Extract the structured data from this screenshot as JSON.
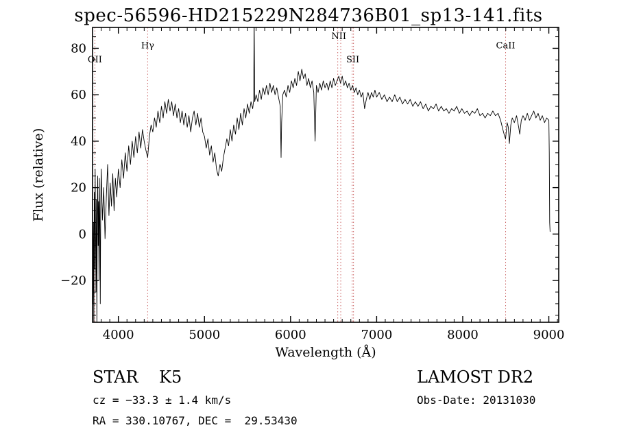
{
  "title": "spec-56596-HD215229N284736B01_sp13-141.fits",
  "annotations": {
    "class_label": "STAR    K5",
    "survey": "LAMOST DR2",
    "cz": "cz = −33.3 ± 1.4 km/s",
    "obs_date": "Obs-Date: 20131030",
    "radec": "RA = 330.10767, DEC =  29.53430"
  },
  "colors": {
    "trace": "#000000",
    "axis": "#000000",
    "spectral_line": "#cc6666",
    "spectral_label": "#883333"
  },
  "chart_data": {
    "type": "line",
    "title": "spec-56596-HD215229N284736B01_sp13-141.fits",
    "xlabel": "Wavelength (Å)",
    "ylabel": "Flux (relative)",
    "xlim": [
      3700,
      9115
    ],
    "ylim": [
      -38,
      89
    ],
    "grid": false,
    "legend": "none",
    "xticks": [
      4000,
      5000,
      6000,
      7000,
      8000,
      9000
    ],
    "xtick_labels": [
      "4000",
      "5000",
      "6000",
      "7000",
      "8000",
      "9000"
    ],
    "yticks": [
      -20,
      0,
      20,
      40,
      60,
      80
    ],
    "ytick_labels": [
      "−20",
      "0",
      "20",
      "40",
      "60",
      "80"
    ],
    "x_minor_step": 100,
    "y_minor_step": 5,
    "spectral_lines": [
      {
        "label": "OII",
        "waves": [
          3727
        ],
        "label_wave": 3727,
        "label_flux": 74
      },
      {
        "label": "Hγ",
        "waves": [
          4340
        ],
        "label_wave": 4340,
        "label_flux": 80
      },
      {
        "label": "NII",
        "waves": [
          6548,
          6583
        ],
        "label_wave": 6560,
        "label_flux": 84
      },
      {
        "label": "SII",
        "waves": [
          6716,
          6731
        ],
        "label_wave": 6723,
        "label_flux": 74
      },
      {
        "label": "CaII",
        "waves": [
          8498
        ],
        "label_wave": 8498,
        "label_flux": 80
      }
    ],
    "series": [
      {
        "name": "spectrum",
        "points": [
          [
            3695,
            -8
          ],
          [
            3700,
            12
          ],
          [
            3705,
            -30
          ],
          [
            3710,
            5
          ],
          [
            3715,
            -45
          ],
          [
            3720,
            18
          ],
          [
            3725,
            -15
          ],
          [
            3730,
            28
          ],
          [
            3735,
            0
          ],
          [
            3740,
            -25
          ],
          [
            3745,
            15
          ],
          [
            3750,
            -38
          ],
          [
            3755,
            8
          ],
          [
            3760,
            25
          ],
          [
            3765,
            -5
          ],
          [
            3770,
            14
          ],
          [
            3775,
            -20
          ],
          [
            3780,
            24
          ],
          [
            3785,
            2
          ],
          [
            3790,
            -30
          ],
          [
            3795,
            10
          ],
          [
            3800,
            28
          ],
          [
            3815,
            6
          ],
          [
            3830,
            20
          ],
          [
            3845,
            -2
          ],
          [
            3860,
            16
          ],
          [
            3875,
            30
          ],
          [
            3890,
            8
          ],
          [
            3905,
            22
          ],
          [
            3920,
            12
          ],
          [
            3935,
            26
          ],
          [
            3950,
            10
          ],
          [
            3965,
            24
          ],
          [
            3980,
            16
          ],
          [
            4000,
            28
          ],
          [
            4020,
            20
          ],
          [
            4040,
            32
          ],
          [
            4060,
            24
          ],
          [
            4080,
            35
          ],
          [
            4100,
            27
          ],
          [
            4120,
            38
          ],
          [
            4140,
            30
          ],
          [
            4160,
            40
          ],
          [
            4180,
            33
          ],
          [
            4200,
            42
          ],
          [
            4220,
            35
          ],
          [
            4240,
            44
          ],
          [
            4260,
            37
          ],
          [
            4280,
            45
          ],
          [
            4300,
            40
          ],
          [
            4320,
            36
          ],
          [
            4340,
            33
          ],
          [
            4360,
            42
          ],
          [
            4380,
            47
          ],
          [
            4400,
            44
          ],
          [
            4420,
            50
          ],
          [
            4440,
            46
          ],
          [
            4460,
            53
          ],
          [
            4480,
            48
          ],
          [
            4500,
            55
          ],
          [
            4520,
            50
          ],
          [
            4540,
            57
          ],
          [
            4560,
            52
          ],
          [
            4580,
            58
          ],
          [
            4600,
            53
          ],
          [
            4620,
            57
          ],
          [
            4640,
            51
          ],
          [
            4660,
            56
          ],
          [
            4680,
            50
          ],
          [
            4700,
            54
          ],
          [
            4720,
            48
          ],
          [
            4740,
            53
          ],
          [
            4760,
            47
          ],
          [
            4780,
            52
          ],
          [
            4800,
            46
          ],
          [
            4820,
            51
          ],
          [
            4840,
            44
          ],
          [
            4860,
            50
          ],
          [
            4880,
            53
          ],
          [
            4900,
            47
          ],
          [
            4920,
            52
          ],
          [
            4940,
            46
          ],
          [
            4960,
            50
          ],
          [
            4980,
            44
          ],
          [
            5000,
            42
          ],
          [
            5020,
            37
          ],
          [
            5040,
            41
          ],
          [
            5060,
            34
          ],
          [
            5080,
            38
          ],
          [
            5100,
            31
          ],
          [
            5120,
            35
          ],
          [
            5140,
            28
          ],
          [
            5160,
            25
          ],
          [
            5180,
            30
          ],
          [
            5200,
            27
          ],
          [
            5220,
            33
          ],
          [
            5240,
            37
          ],
          [
            5260,
            41
          ],
          [
            5280,
            38
          ],
          [
            5300,
            45
          ],
          [
            5320,
            40
          ],
          [
            5340,
            47
          ],
          [
            5360,
            43
          ],
          [
            5380,
            50
          ],
          [
            5400,
            45
          ],
          [
            5420,
            52
          ],
          [
            5440,
            47
          ],
          [
            5460,
            54
          ],
          [
            5480,
            50
          ],
          [
            5500,
            56
          ],
          [
            5520,
            52
          ],
          [
            5540,
            57
          ],
          [
            5560,
            54
          ],
          [
            5572,
            58
          ],
          [
            5577,
            95
          ],
          [
            5583,
            57
          ],
          [
            5600,
            60
          ],
          [
            5620,
            57
          ],
          [
            5640,
            62
          ],
          [
            5660,
            58
          ],
          [
            5680,
            63
          ],
          [
            5700,
            60
          ],
          [
            5720,
            64
          ],
          [
            5740,
            60
          ],
          [
            5760,
            65
          ],
          [
            5780,
            61
          ],
          [
            5800,
            64
          ],
          [
            5820,
            60
          ],
          [
            5840,
            63
          ],
          [
            5860,
            59
          ],
          [
            5880,
            55
          ],
          [
            5890,
            33
          ],
          [
            5896,
            48
          ],
          [
            5910,
            60
          ],
          [
            5930,
            62
          ],
          [
            5950,
            59
          ],
          [
            5970,
            64
          ],
          [
            5990,
            61
          ],
          [
            6010,
            66
          ],
          [
            6030,
            63
          ],
          [
            6050,
            67
          ],
          [
            6070,
            64
          ],
          [
            6090,
            70
          ],
          [
            6110,
            66
          ],
          [
            6130,
            71
          ],
          [
            6150,
            67
          ],
          [
            6170,
            69
          ],
          [
            6190,
            64
          ],
          [
            6210,
            67
          ],
          [
            6230,
            63
          ],
          [
            6250,
            66
          ],
          [
            6270,
            61
          ],
          [
            6285,
            40
          ],
          [
            6300,
            64
          ],
          [
            6320,
            61
          ],
          [
            6340,
            65
          ],
          [
            6360,
            62
          ],
          [
            6380,
            66
          ],
          [
            6400,
            63
          ],
          [
            6420,
            65
          ],
          [
            6440,
            62
          ],
          [
            6460,
            66
          ],
          [
            6480,
            63
          ],
          [
            6500,
            67
          ],
          [
            6520,
            64
          ],
          [
            6540,
            66
          ],
          [
            6560,
            68
          ],
          [
            6580,
            65
          ],
          [
            6600,
            68
          ],
          [
            6620,
            64
          ],
          [
            6640,
            66
          ],
          [
            6660,
            63
          ],
          [
            6680,
            65
          ],
          [
            6700,
            62
          ],
          [
            6720,
            64
          ],
          [
            6740,
            61
          ],
          [
            6760,
            63
          ],
          [
            6780,
            60
          ],
          [
            6800,
            62
          ],
          [
            6820,
            59
          ],
          [
            6840,
            61
          ],
          [
            6860,
            54
          ],
          [
            6880,
            58
          ],
          [
            6900,
            61
          ],
          [
            6920,
            58
          ],
          [
            6940,
            61
          ],
          [
            6960,
            59
          ],
          [
            6980,
            62
          ],
          [
            7000,
            59
          ],
          [
            7030,
            61
          ],
          [
            7060,
            58
          ],
          [
            7090,
            60
          ],
          [
            7120,
            57
          ],
          [
            7150,
            59
          ],
          [
            7180,
            57
          ],
          [
            7210,
            60
          ],
          [
            7240,
            57
          ],
          [
            7270,
            59
          ],
          [
            7300,
            56
          ],
          [
            7330,
            58
          ],
          [
            7360,
            56
          ],
          [
            7390,
            58
          ],
          [
            7420,
            55
          ],
          [
            7450,
            57
          ],
          [
            7480,
            55
          ],
          [
            7510,
            57
          ],
          [
            7540,
            54
          ],
          [
            7570,
            56
          ],
          [
            7600,
            53
          ],
          [
            7630,
            55
          ],
          [
            7660,
            54
          ],
          [
            7690,
            56
          ],
          [
            7720,
            53
          ],
          [
            7750,
            55
          ],
          [
            7780,
            53
          ],
          [
            7810,
            54
          ],
          [
            7840,
            52
          ],
          [
            7870,
            54
          ],
          [
            7900,
            53
          ],
          [
            7930,
            55
          ],
          [
            7960,
            52
          ],
          [
            7990,
            54
          ],
          [
            8020,
            52
          ],
          [
            8050,
            53
          ],
          [
            8080,
            51
          ],
          [
            8110,
            53
          ],
          [
            8140,
            52
          ],
          [
            8170,
            54
          ],
          [
            8200,
            51
          ],
          [
            8230,
            52
          ],
          [
            8260,
            50
          ],
          [
            8290,
            52
          ],
          [
            8320,
            51
          ],
          [
            8350,
            53
          ],
          [
            8380,
            51
          ],
          [
            8410,
            52
          ],
          [
            8440,
            49
          ],
          [
            8460,
            46
          ],
          [
            8480,
            43
          ],
          [
            8498,
            41
          ],
          [
            8515,
            48
          ],
          [
            8530,
            46
          ],
          [
            8542,
            39
          ],
          [
            8558,
            47
          ],
          [
            8575,
            50
          ],
          [
            8600,
            48
          ],
          [
            8625,
            51
          ],
          [
            8650,
            46
          ],
          [
            8662,
            43
          ],
          [
            8680,
            49
          ],
          [
            8700,
            51
          ],
          [
            8725,
            49
          ],
          [
            8750,
            52
          ],
          [
            8775,
            49
          ],
          [
            8800,
            51
          ],
          [
            8825,
            53
          ],
          [
            8850,
            50
          ],
          [
            8875,
            52
          ],
          [
            8900,
            49
          ],
          [
            8925,
            51
          ],
          [
            8950,
            48
          ],
          [
            8975,
            50
          ],
          [
            9000,
            49
          ],
          [
            9005,
            35
          ],
          [
            9010,
            5
          ],
          [
            9015,
            1
          ]
        ]
      }
    ]
  }
}
